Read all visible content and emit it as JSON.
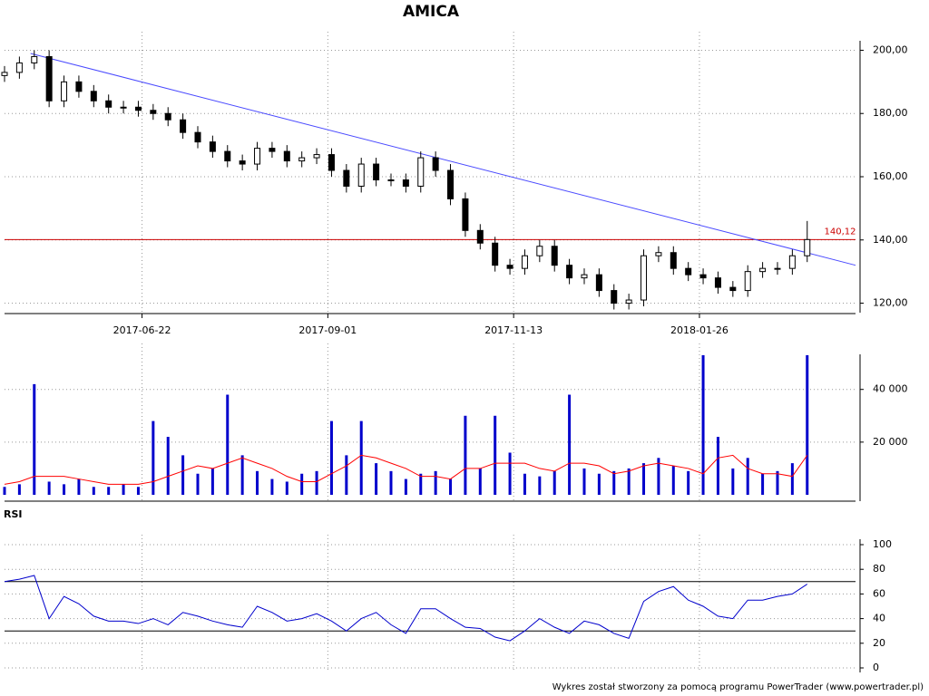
{
  "chart_data": [
    {
      "type": "candlestick",
      "title": "AMICA",
      "x": [
        0,
        4,
        8,
        12,
        16,
        20,
        24,
        28,
        32,
        36,
        40,
        44,
        48,
        52,
        56,
        60,
        64,
        68,
        72,
        76,
        80,
        84,
        88,
        92,
        96,
        100,
        104,
        108,
        112,
        116,
        120,
        124,
        128,
        132,
        136,
        140,
        144,
        148,
        152,
        156,
        160,
        164,
        168,
        172,
        176,
        180,
        184,
        188,
        192,
        196,
        200,
        204,
        208,
        212,
        216
      ],
      "open": [
        192,
        193,
        196,
        198,
        184,
        190,
        187,
        184,
        182,
        182,
        181,
        180,
        178,
        174,
        171,
        168,
        165,
        164,
        169,
        168,
        165,
        166,
        167,
        162,
        157,
        164,
        159,
        159,
        157,
        166,
        162,
        153,
        143,
        139,
        132,
        131,
        135,
        138,
        132,
        128,
        129,
        124,
        120,
        121,
        135,
        136,
        131,
        129,
        128,
        125,
        124,
        130,
        131,
        131,
        135
      ],
      "high": [
        195,
        198,
        200,
        200,
        192,
        192,
        189,
        186,
        184,
        184,
        183,
        182,
        180,
        176,
        173,
        170,
        167,
        171,
        171,
        170,
        168,
        169,
        169,
        164,
        166,
        166,
        161,
        161,
        168,
        168,
        164,
        155,
        145,
        141,
        134,
        137,
        140,
        140,
        134,
        131,
        131,
        126,
        123,
        137,
        138,
        138,
        133,
        131,
        130,
        127,
        132,
        133,
        133,
        137,
        146
      ],
      "low": [
        190,
        191,
        194,
        182,
        182,
        185,
        182,
        180,
        180,
        179,
        178,
        176,
        172,
        169,
        166,
        163,
        162,
        162,
        166,
        163,
        163,
        164,
        160,
        155,
        155,
        157,
        157,
        155,
        155,
        160,
        151,
        141,
        137,
        130,
        129,
        129,
        133,
        130,
        126,
        126,
        122,
        118,
        118,
        119,
        133,
        129,
        127,
        126,
        123,
        122,
        122,
        128,
        129,
        129,
        133
      ],
      "close": [
        193,
        196,
        198,
        184,
        190,
        187,
        184,
        182,
        182,
        181,
        180,
        178,
        174,
        171,
        168,
        165,
        164,
        169,
        168,
        165,
        166,
        167,
        162,
        157,
        164,
        159,
        159,
        157,
        166,
        162,
        153,
        143,
        139,
        132,
        131,
        135,
        138,
        132,
        128,
        129,
        124,
        120,
        121,
        135,
        136,
        131,
        129,
        128,
        125,
        124,
        130,
        131,
        131,
        135,
        140.12
      ],
      "xlim": [
        0,
        229
      ],
      "xticks": [
        {
          "value": 37,
          "label": "2017-06-22"
        },
        {
          "value": 87,
          "label": "2017-09-01"
        },
        {
          "value": 137,
          "label": "2017-11-13"
        },
        {
          "value": 187,
          "label": "2018-01-26"
        }
      ],
      "ylim": [
        117,
        203
      ],
      "yticks": [
        {
          "value": 120,
          "label": "120,00"
        },
        {
          "value": 140,
          "label": "140,00"
        },
        {
          "value": 160,
          "label": "160,00"
        },
        {
          "value": 180,
          "label": "180,00"
        },
        {
          "value": 200,
          "label": "200,00"
        }
      ],
      "trendline": {
        "x": [
          7,
          229
        ],
        "y": [
          199,
          132
        ],
        "color": "#4a4aff"
      },
      "hline": {
        "value": 140.12,
        "label": "140,12",
        "color": "#cc0000"
      },
      "grid": true
    },
    {
      "type": "volume",
      "x": [
        0,
        4,
        8,
        12,
        16,
        20,
        24,
        28,
        32,
        36,
        40,
        44,
        48,
        52,
        56,
        60,
        64,
        68,
        72,
        76,
        80,
        84,
        88,
        92,
        96,
        100,
        104,
        108,
        112,
        116,
        120,
        124,
        128,
        132,
        136,
        140,
        144,
        148,
        152,
        156,
        160,
        164,
        168,
        172,
        176,
        180,
        184,
        188,
        192,
        196,
        200,
        204,
        208,
        212,
        216
      ],
      "bars": {
        "color": "#0000cc",
        "values": [
          3000,
          4000,
          42000,
          5000,
          4000,
          6000,
          3000,
          3000,
          4000,
          3000,
          28000,
          22000,
          15000,
          8000,
          10000,
          38000,
          15000,
          9000,
          6000,
          5000,
          8000,
          9000,
          28000,
          15000,
          28000,
          12000,
          9000,
          6000,
          8000,
          9000,
          6000,
          30000,
          10000,
          30000,
          16000,
          8000,
          7000,
          9000,
          38000,
          10000,
          8000,
          9000,
          10000,
          12000,
          14000,
          11000,
          9000,
          53000,
          22000,
          10000,
          14000,
          8000,
          9000,
          12000,
          53000
        ]
      },
      "average": {
        "color": "#ff0000",
        "values": [
          4000,
          5000,
          7000,
          7000,
          7000,
          6000,
          5000,
          4000,
          4000,
          4000,
          5000,
          7000,
          9000,
          11000,
          10000,
          12000,
          14000,
          12000,
          10000,
          7000,
          5000,
          5000,
          8000,
          11000,
          15000,
          14000,
          12000,
          10000,
          7000,
          7000,
          6000,
          10000,
          10000,
          12000,
          12000,
          12000,
          10000,
          9000,
          12000,
          12000,
          11000,
          8000,
          9000,
          11000,
          12000,
          11000,
          10000,
          8000,
          14000,
          15000,
          10000,
          8000,
          8000,
          7000,
          15000
        ]
      },
      "ylim": [
        0,
        54000
      ],
      "yticks": [
        {
          "value": 20000,
          "label": "20 000"
        },
        {
          "value": 40000,
          "label": "40 000"
        }
      ],
      "grid": true
    },
    {
      "type": "line",
      "title": "RSI",
      "x": [
        0,
        4,
        8,
        12,
        16,
        20,
        24,
        28,
        32,
        36,
        40,
        44,
        48,
        52,
        56,
        60,
        64,
        68,
        72,
        76,
        80,
        84,
        88,
        92,
        96,
        100,
        104,
        108,
        112,
        116,
        120,
        124,
        128,
        132,
        136,
        140,
        144,
        148,
        152,
        156,
        160,
        164,
        168,
        172,
        176,
        180,
        184,
        188,
        192,
        196,
        200,
        204,
        208,
        212,
        216
      ],
      "values": [
        70,
        72,
        75,
        40,
        58,
        52,
        42,
        38,
        38,
        36,
        40,
        35,
        45,
        42,
        38,
        35,
        33,
        50,
        45,
        38,
        40,
        44,
        38,
        30,
        40,
        45,
        35,
        28,
        48,
        48,
        40,
        33,
        32,
        25,
        22,
        30,
        40,
        33,
        28,
        38,
        35,
        28,
        24,
        54,
        62,
        66,
        55,
        50,
        42,
        40,
        55,
        55,
        58,
        60,
        68
      ],
      "color": "#0000cc",
      "levels": [
        30,
        70
      ],
      "ylim": [
        0,
        100
      ],
      "yticks": [
        0,
        20,
        40,
        60,
        80,
        100
      ],
      "grid": true
    }
  ],
  "footer": "Wykres został stworzony za pomocą programu PowerTrader (www.powertrader.pl)"
}
